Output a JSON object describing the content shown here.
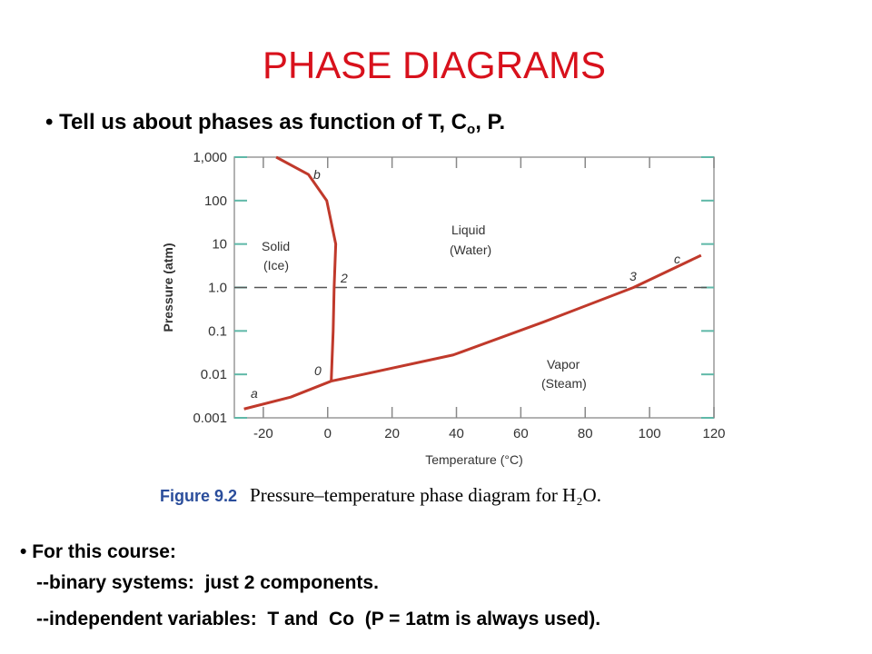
{
  "title": "PHASE DIAGRAMS",
  "intro_bullet": [
    "Tell us about phases as function of T, C",
    "o",
    ", P."
  ],
  "chart_data": {
    "type": "line",
    "y_axis_label": "Pressure (atm)",
    "x_axis_label": "Temperature (°C)",
    "xlim": [
      -29,
      120
    ],
    "xticks": [
      -20,
      0,
      20,
      40,
      60,
      80,
      100,
      120
    ],
    "ylim": [
      0.001,
      1000
    ],
    "ylog": true,
    "yticks": [
      0.001,
      0.01,
      0.1,
      {
        "value": 1,
        "label": "1.0"
      },
      10,
      100,
      {
        "value": 1000,
        "label": "1,000"
      }
    ],
    "reference_y": 1,
    "series": [
      {
        "color": "#c0392b",
        "x": [
          1.1,
          1.7,
          2,
          2.5,
          -0.3,
          -6,
          -16
        ],
        "values": [
          0.007,
          0.1,
          1,
          10,
          100,
          400,
          1000
        ]
      },
      {
        "color": "#c0392b",
        "x": [
          1.1,
          11,
          39,
          67,
          95,
          116
        ],
        "values": [
          0.007,
          0.01,
          0.028,
          0.16,
          1,
          5.5
        ]
      },
      {
        "color": "#c0392b",
        "x": [
          -26,
          -11.5,
          1.1
        ],
        "values": [
          0.0016,
          0.003,
          0.007
        ]
      }
    ],
    "annotations": [
      "Solid",
      "(Ice)",
      "Liquid",
      "(Water)",
      "Vapor",
      "(Steam)",
      "a",
      "b",
      "c",
      "0",
      "2",
      "3"
    ]
  },
  "figure_caption": {
    "label": "Figure 9.2",
    "text": "Pressure–temperature phase diagram for H₂O."
  },
  "course_notes": {
    "heading": "For this course:",
    "lines": [
      "--binary systems:  just 2 components.",
      "--independent variables:  T and  Co  (P = 1atm is always used)."
    ]
  }
}
